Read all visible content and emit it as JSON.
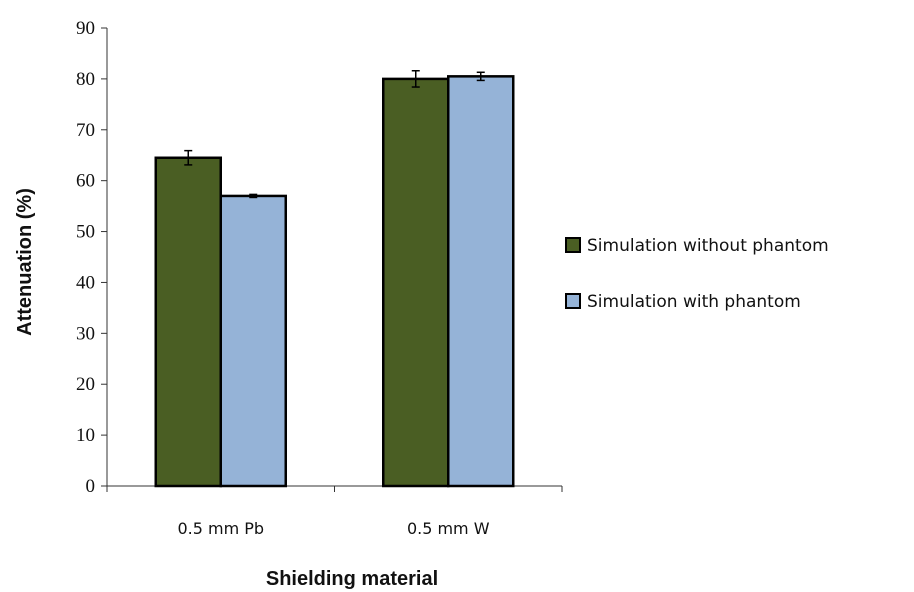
{
  "chart_data": {
    "type": "bar",
    "title": "",
    "xlabel": "Shielding material",
    "ylabel": "Attenuation (%)",
    "ylim": [
      0,
      90
    ],
    "yticks": [
      0,
      10,
      20,
      30,
      40,
      50,
      60,
      70,
      80,
      90
    ],
    "categories": [
      "0.5 mm Pb",
      "0.5 mm W"
    ],
    "series": [
      {
        "name": "Simulation without phantom",
        "color": "#4a5e23",
        "values": [
          64.5,
          80.0
        ],
        "errors": [
          1.4,
          1.6
        ]
      },
      {
        "name": "Simulation with phantom",
        "color": "#95b3d7",
        "values": [
          57.0,
          80.5
        ],
        "errors": [
          0.3,
          0.8
        ]
      }
    ],
    "legend_position": "right",
    "grid": false
  }
}
